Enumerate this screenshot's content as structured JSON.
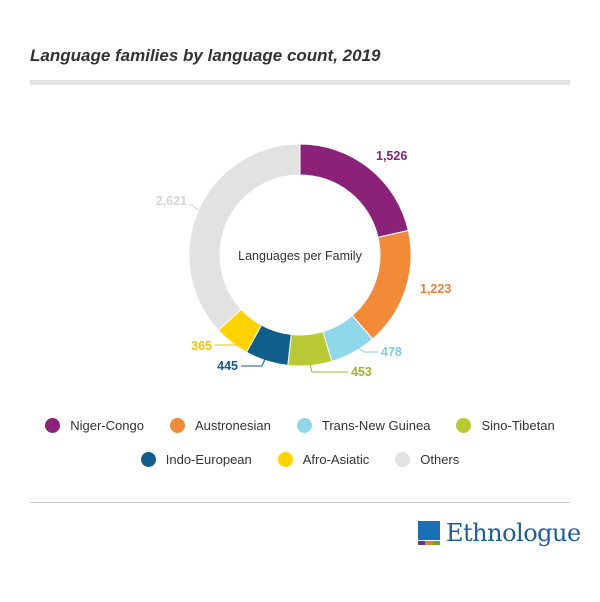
{
  "header": {
    "title": "Language families by language count, 2019"
  },
  "chart_data": {
    "type": "pie",
    "variant": "donut",
    "center_label": "Languages per Family",
    "categories": [
      "Niger-Congo",
      "Austronesian",
      "Trans-New Guinea",
      "Sino-Tibetan",
      "Indo-European",
      "Afro-Asiatic",
      "Others"
    ],
    "values": [
      1526,
      1223,
      478,
      453,
      445,
      365,
      2621
    ],
    "value_labels": [
      "1,526",
      "1,223",
      "478",
      "453",
      "445",
      "365",
      "2,621"
    ],
    "colors": [
      "#8b2178",
      "#f28a38",
      "#8fd8ea",
      "#b9c933",
      "#0f5e8c",
      "#ffd200",
      "#e2e2e2"
    ],
    "label_colors": [
      "#8b2178",
      "#e8823a",
      "#7ccde3",
      "#a6b62b",
      "#0f5e8c",
      "#f2c400",
      "#d4d4d4"
    ],
    "legend_position": "bottom"
  },
  "legend": {
    "row1": [
      "Niger-Congo",
      "Austronesian",
      "Trans-New Guinea",
      "Sino-Tibetan"
    ],
    "row2": [
      "Indo-European",
      "Afro-Asiatic",
      "Others"
    ]
  },
  "logo": {
    "text": "Ethnologue",
    "icon": "ethnologue-logo-icon",
    "mark_colors": [
      "#1b6fb4",
      "#5b3b8c",
      "#d9822b",
      "#6a9e3a"
    ]
  }
}
